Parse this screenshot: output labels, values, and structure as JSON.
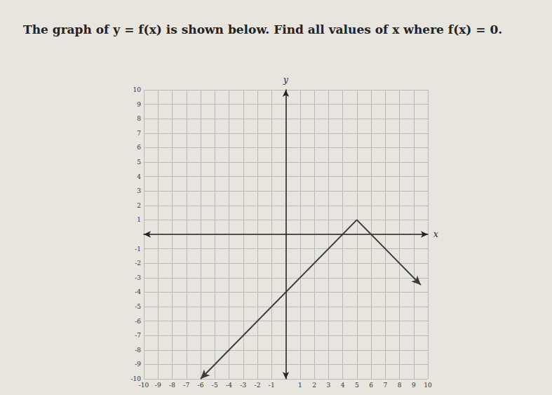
{
  "chart_data": {
    "type": "line",
    "title": "The graph of y = f(x) is shown below. Find all values of x where f(x) = 0.",
    "xlabel": "x",
    "ylabel": "y",
    "x": [
      -6,
      5,
      9.5
    ],
    "values": [
      -10,
      1,
      -3.5
    ],
    "color": "#3a3a3a",
    "marker": "arrow",
    "line_style": "solid",
    "xlim": [
      -10,
      10
    ],
    "ylim": [
      -10,
      10
    ],
    "xticks": [
      -10,
      -9,
      -8,
      -7,
      -6,
      -5,
      -4,
      -3,
      -2,
      -1,
      1,
      2,
      3,
      4,
      5,
      6,
      7,
      8,
      9,
      10
    ],
    "yticks": [
      -10,
      -9,
      -8,
      -7,
      -6,
      -5,
      -4,
      -3,
      -2,
      -1,
      1,
      2,
      3,
      4,
      5,
      6,
      7,
      8,
      9,
      10
    ],
    "grid": true
  }
}
